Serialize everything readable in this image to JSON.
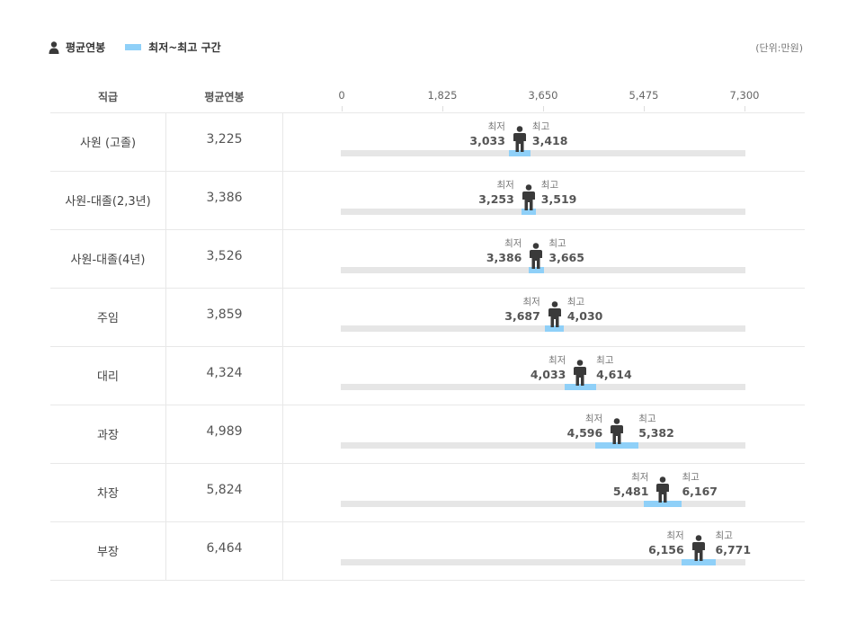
{
  "legend": {
    "avg_label": "평균연봉",
    "range_label": "최저~최고 구간",
    "unit": "(단위:만원)"
  },
  "table": {
    "col_rank": "직급",
    "col_avg": "평균연봉"
  },
  "labels": {
    "min": "최저",
    "max": "최고"
  },
  "colors": {
    "range": "#8fd0f8",
    "track": "#e6e6e6",
    "person": "#3a3a3a"
  },
  "chart_data": {
    "type": "bar",
    "xlim": [
      0,
      7300
    ],
    "ticks": [
      "0",
      "1,825",
      "3,650",
      "5,475",
      "7,300"
    ],
    "rows": [
      {
        "name": "사원 (고졸)",
        "avg": "3,225",
        "avg_value": 3225,
        "min": 3033,
        "max": 3418,
        "min_text": "3,033",
        "max_text": "3,418"
      },
      {
        "name": "사원-대졸(2,3년)",
        "avg": "3,386",
        "avg_value": 3386,
        "min": 3253,
        "max": 3519,
        "min_text": "3,253",
        "max_text": "3,519"
      },
      {
        "name": "사원-대졸(4년)",
        "avg": "3,526",
        "avg_value": 3526,
        "min": 3386,
        "max": 3665,
        "min_text": "3,386",
        "max_text": "3,665"
      },
      {
        "name": "주임",
        "avg": "3,859",
        "avg_value": 3859,
        "min": 3687,
        "max": 4030,
        "min_text": "3,687",
        "max_text": "4,030"
      },
      {
        "name": "대리",
        "avg": "4,324",
        "avg_value": 4324,
        "min": 4033,
        "max": 4614,
        "min_text": "4,033",
        "max_text": "4,614"
      },
      {
        "name": "과장",
        "avg": "4,989",
        "avg_value": 4989,
        "min": 4596,
        "max": 5382,
        "min_text": "4,596",
        "max_text": "5,382"
      },
      {
        "name": "차장",
        "avg": "5,824",
        "avg_value": 5824,
        "min": 5481,
        "max": 6167,
        "min_text": "5,481",
        "max_text": "6,167"
      },
      {
        "name": "부장",
        "avg": "6,464",
        "avg_value": 6464,
        "min": 6156,
        "max": 6771,
        "min_text": "6,156",
        "max_text": "6,771"
      }
    ]
  }
}
